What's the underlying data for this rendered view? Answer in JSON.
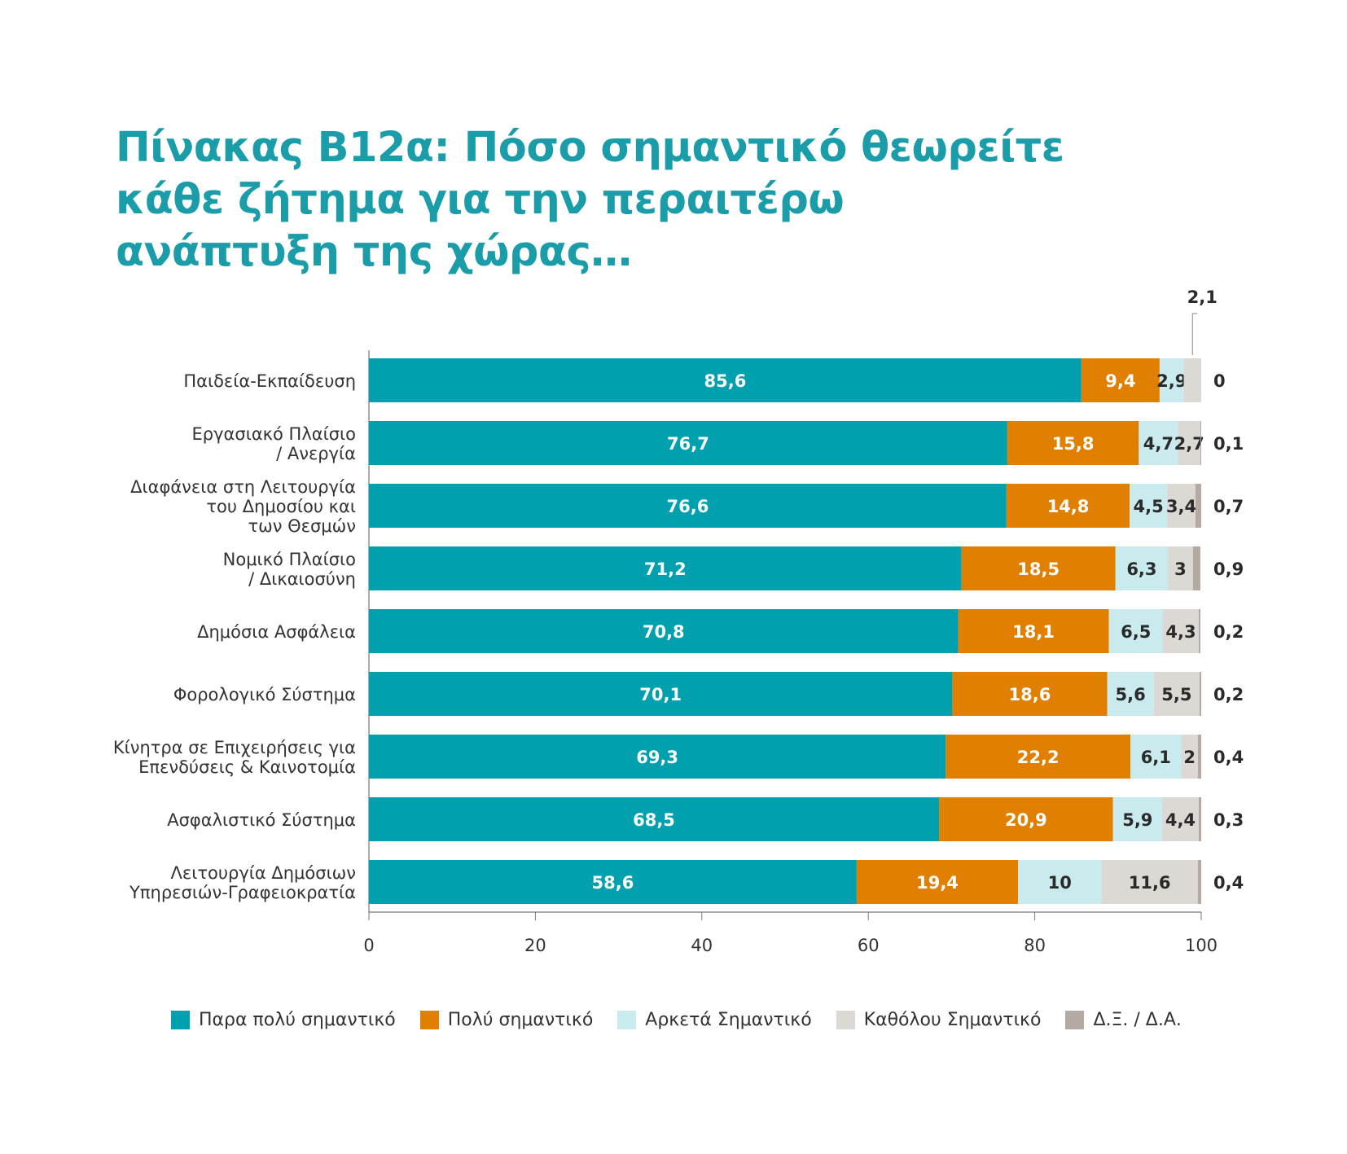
{
  "title": "Πίνακας Β12α: Πόσο σημαντικό θεωρείτε κάθε ζήτημα για την περαιτέρω ανάπτυξη της χώρας…",
  "chart_data": {
    "type": "bar",
    "orientation": "horizontal",
    "stacked": true,
    "title": "Πίνακας Β12α: Πόσο σημαντικό θεωρείτε κάθε ζήτημα για την περαιτέρω ανάπτυξη της χώρας…",
    "categories": [
      [
        "Παιδεία-Εκπαίδευση"
      ],
      [
        "Εργασιακό Πλαίσιο",
        "/ Ανεργία"
      ],
      [
        "Διαφάνεια στη Λειτουργία",
        "του Δημοσίου και",
        "των Θεσμών"
      ],
      [
        "Νομικό Πλαίσιο",
        "/ Δικαιοσύνη"
      ],
      [
        "Δημόσια Ασφάλεια"
      ],
      [
        "Φορολογικό Σύστημα"
      ],
      [
        "Κίνητρα σε Επιχειρήσεις για",
        "Επενδύσεις & Καινοτομία"
      ],
      [
        "Ασφαλιστικό Σύστημα"
      ],
      [
        "Λειτουργία Δημόσιων",
        "Υπηρεσιών-Γραφειοκρατία"
      ]
    ],
    "series": [
      {
        "name": "Παρα πολύ σημαντικό",
        "color": "#00a0ae",
        "values": [
          85.6,
          76.7,
          76.6,
          71.2,
          70.8,
          70.1,
          69.3,
          68.5,
          58.6
        ],
        "labels": [
          "85,6",
          "76,7",
          "76,6",
          "71,2",
          "70,8",
          "70,1",
          "69,3",
          "68,5",
          "58,6"
        ]
      },
      {
        "name": "Πολύ σημαντικό",
        "color": "#e17f00",
        "values": [
          9.4,
          15.8,
          14.8,
          18.5,
          18.1,
          18.6,
          22.2,
          20.9,
          19.4
        ],
        "labels": [
          "9,4",
          "15,8",
          "14,8",
          "18,5",
          "18,1",
          "18,6",
          "22,2",
          "20,9",
          "19,4"
        ]
      },
      {
        "name": "Αρκετά Σημαντικό",
        "color": "#c9ebee",
        "values": [
          2.9,
          4.7,
          4.5,
          6.3,
          6.5,
          5.6,
          6.1,
          5.9,
          10
        ],
        "labels": [
          "2,9",
          "4,7",
          "4,5",
          "6,3",
          "6,5",
          "5,6",
          "6,1",
          "5,9",
          "10"
        ]
      },
      {
        "name": "Καθόλου Σημαντικό",
        "color": "#dcd8d4",
        "values": [
          2.1,
          2.7,
          3.4,
          3,
          4.3,
          5.5,
          2,
          4.4,
          11.6
        ],
        "labels": [
          "2,1",
          "2,7",
          "3,4",
          "3",
          "4,3",
          "5,5",
          "2",
          "4,4",
          "11,6"
        ]
      },
      {
        "name": "Δ.Ξ. / Δ.Α.",
        "color": "#b3aba3",
        "values": [
          0,
          0.1,
          0.7,
          0.9,
          0.2,
          0.2,
          0.4,
          0.3,
          0.4
        ],
        "labels": [
          "0",
          "0,1",
          "0,7",
          "0,9",
          "0,2",
          "0,2",
          "0,4",
          "0,3",
          "0,4"
        ]
      }
    ],
    "xlim": [
      0,
      100
    ],
    "xticks": [
      "0",
      "20",
      "40",
      "60",
      "80",
      "100"
    ],
    "xlabel": "",
    "ylabel": "",
    "grid": false,
    "legend": "bottom"
  }
}
